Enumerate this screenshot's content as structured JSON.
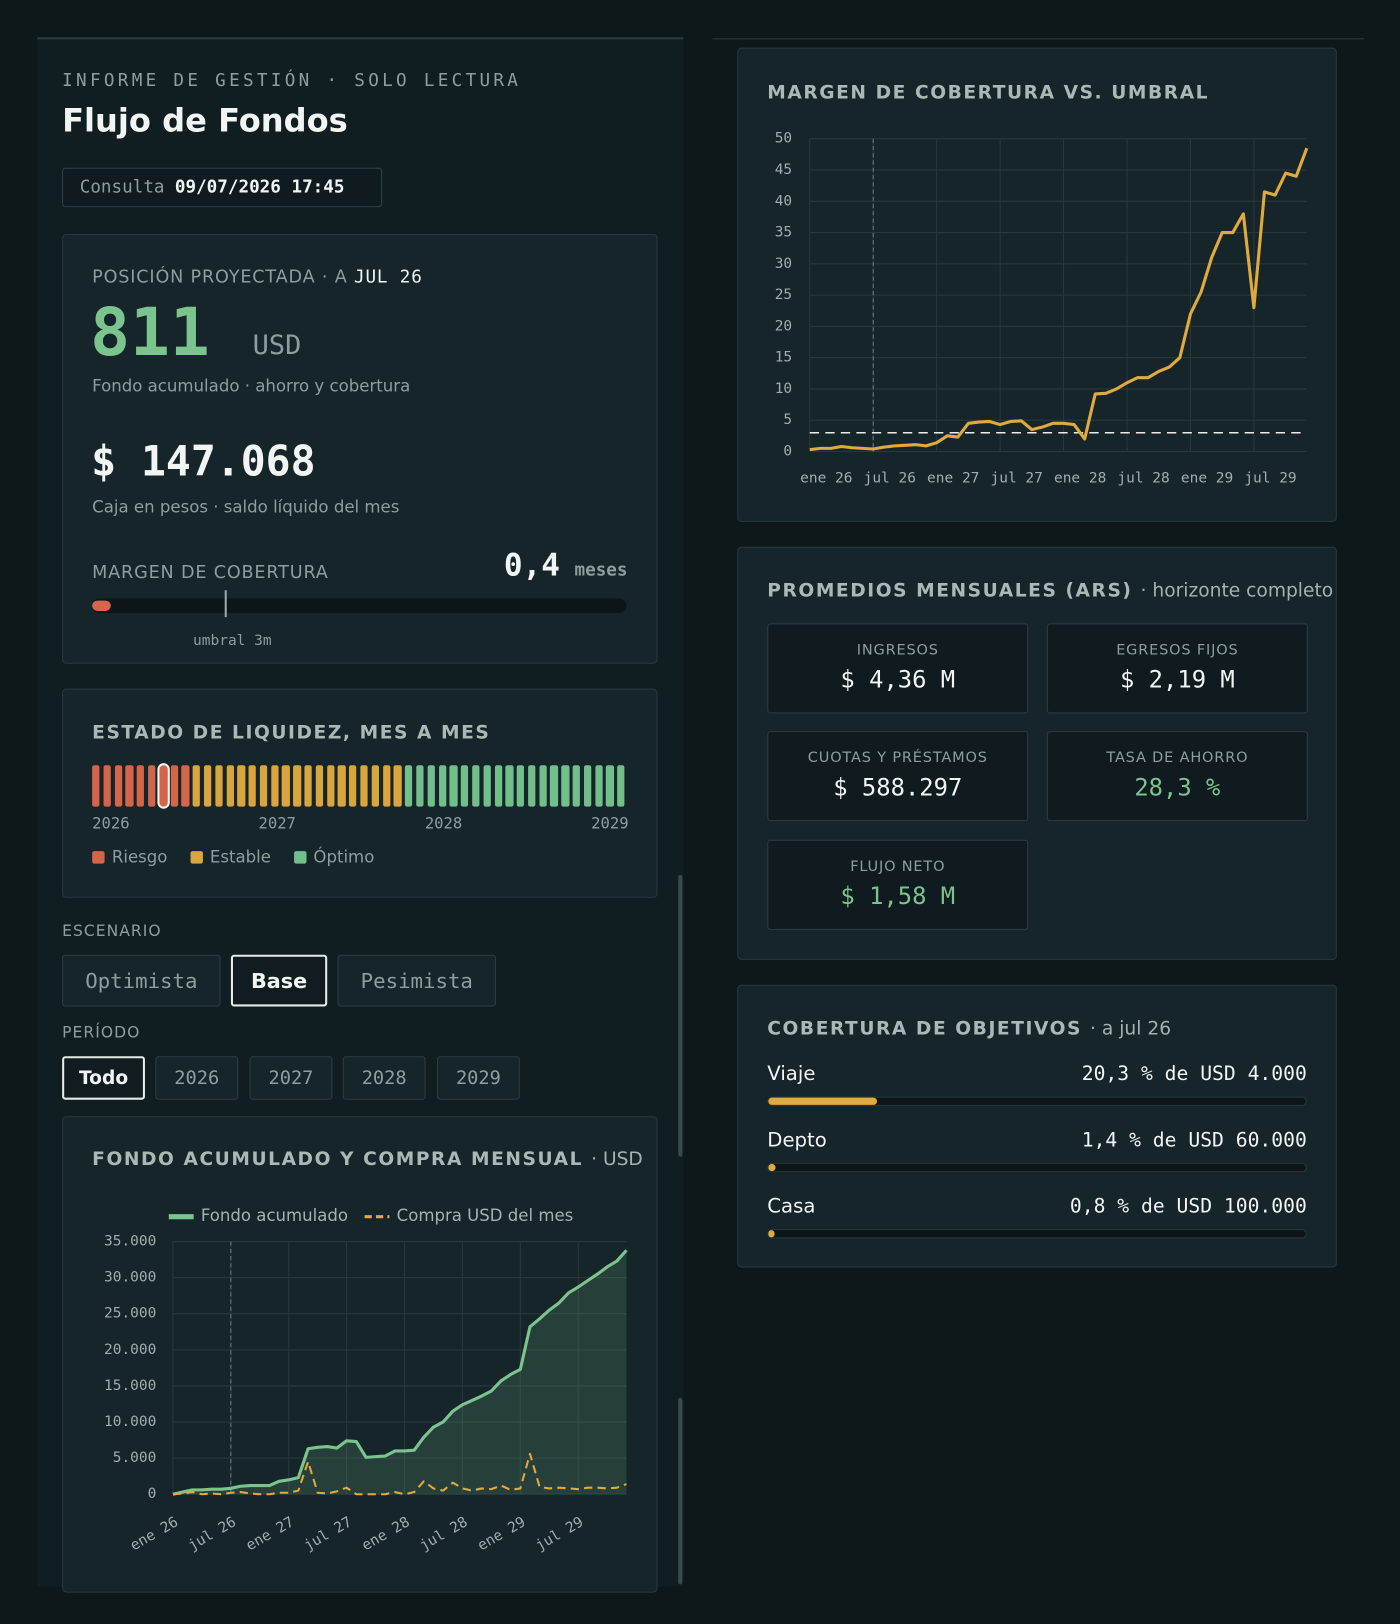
{
  "header": {
    "eyebrow": "INFORME DE GESTIÓN · SOLO LECTURA",
    "title": "Flujo de Fondos",
    "query_label": "Consulta",
    "query_value": "09/07/2026 17:45"
  },
  "position": {
    "label": "POSICIÓN PROYECTADA · A",
    "month": "JUL 26",
    "fund": 811,
    "fund_unit": "USD",
    "fund_caption": "Fondo acumulado · ahorro y cobertura",
    "cash": "$ 147.068",
    "cash_caption": "Caja en pesos · saldo líquido del mes",
    "margin": {
      "label": "MARGEN DE COBERTURA",
      "value": 0.4,
      "value_label": "0,4",
      "unit": "meses",
      "threshold": 3,
      "threshold_label": "umbral 3m",
      "scale_max": 12,
      "color": "#d8664b"
    }
  },
  "liquidity": {
    "title": "ESTADO DE LIQUIDEZ, MES A MES",
    "states": [
      0,
      0,
      0,
      0,
      0,
      0,
      0,
      0,
      0,
      1,
      1,
      1,
      1,
      1,
      1,
      1,
      1,
      1,
      1,
      1,
      1,
      1,
      1,
      1,
      1,
      1,
      1,
      1,
      2,
      2,
      2,
      2,
      2,
      2,
      2,
      2,
      2,
      2,
      2,
      2,
      2,
      2,
      2,
      2,
      2,
      2,
      2,
      2
    ],
    "selected": 6,
    "years": [
      2026,
      2027,
      2028,
      2029
    ],
    "legend": [
      {
        "label": "Riesgo",
        "color": "#d4654b"
      },
      {
        "label": "Estable",
        "color": "#d8a53f"
      },
      {
        "label": "Óptimo",
        "color": "#72bf8b"
      }
    ]
  },
  "scenario": {
    "label": "ESCENARIO",
    "options": [
      "Optimista",
      "Base",
      "Pesimista"
    ],
    "selected": 1
  },
  "period": {
    "label": "PERÍODO",
    "options": [
      "Todo",
      "2026",
      "2027",
      "2028",
      "2029"
    ],
    "selected": 0
  },
  "averages": {
    "title": "PROMEDIOS MENSUALES (ARS)",
    "subtitle": "· horizonte completo",
    "tiles": [
      {
        "label": "INGRESOS",
        "value": "$ 4,36 M"
      },
      {
        "label": "EGRESOS FIJOS",
        "value": "$ 2,19 M"
      },
      {
        "label": "CUOTAS Y PRÉSTAMOS",
        "value": "$ 588.297"
      },
      {
        "label": "TASA DE AHORRO",
        "value": "28,3 %",
        "color": "#7cc48e"
      },
      {
        "label": "FLUJO NETO",
        "value": "$ 1,58 M",
        "color": "#7cc48e"
      }
    ]
  },
  "goals": {
    "title": "COBERTURA DE OBJETIVOS",
    "subtitle": "· a jul 26",
    "color": "#e0aa3e",
    "items": [
      {
        "name": "Viaje",
        "value": 20.3,
        "label": "20,3 % de USD 4.000"
      },
      {
        "name": "Depto",
        "value": 1.4,
        "label": "1,4 % de USD 60.000"
      },
      {
        "name": "Casa",
        "value": 0.8,
        "label": "0,8 % de USD 100.000"
      }
    ]
  },
  "chart_data": [
    {
      "type": "line",
      "title": "FONDO ACUMULADO Y COMPRA MENSUAL",
      "subtitle": "· USD",
      "categories": [
        "ene 26",
        null,
        null,
        null,
        null,
        null,
        "jul 26",
        null,
        null,
        null,
        null,
        null,
        "ene 27",
        null,
        null,
        null,
        null,
        null,
        "jul 27",
        null,
        null,
        null,
        null,
        null,
        "ene 28",
        null,
        null,
        null,
        null,
        null,
        "jul 28",
        null,
        null,
        null,
        null,
        null,
        "ene 29",
        null,
        null,
        null,
        null,
        null,
        "jul 29",
        null,
        null,
        null,
        null,
        null
      ],
      "marker": 6,
      "ylim": [
        0,
        35000
      ],
      "yticks": [
        0,
        {
          "value": 5000,
          "label": "5.000"
        },
        {
          "value": 10000,
          "label": "10.000"
        },
        {
          "value": 15000,
          "label": "15.000"
        },
        {
          "value": 20000,
          "label": "20.000"
        },
        {
          "value": 25000,
          "label": "25.000"
        },
        {
          "value": 30000,
          "label": "30.000"
        },
        {
          "value": 35000,
          "label": "35.000"
        }
      ],
      "grid": true,
      "series": [
        {
          "name": "Fondo acumulado",
          "color": "#7cc48e",
          "fill": true,
          "values": [
            0,
            300,
            600,
            600,
            700,
            700,
            811,
            1100,
            1200,
            1200,
            1200,
            1800,
            2000,
            2300,
            6300,
            6500,
            6600,
            6400,
            7400,
            7300,
            5100,
            5200,
            5300,
            6000,
            6000,
            6100,
            7900,
            9300,
            10000,
            11500,
            12400,
            13000,
            13600,
            14300,
            15700,
            16600,
            17300,
            23200,
            24300,
            25500,
            26500,
            27900,
            28700,
            29600,
            30500,
            31500,
            32300,
            33800
          ]
        },
        {
          "name": "Compra USD del mes",
          "color": "#e0aa3e",
          "dashed": true,
          "values": [
            0,
            100,
            300,
            0,
            100,
            0,
            200,
            300,
            100,
            0,
            0,
            200,
            200,
            500,
            4500,
            200,
            100,
            400,
            900,
            0,
            0,
            0,
            0,
            300,
            0,
            300,
            1800,
            800,
            500,
            1600,
            800,
            500,
            800,
            700,
            1200,
            600,
            800,
            5600,
            1000,
            800,
            900,
            800,
            700,
            900,
            900,
            800,
            900,
            1400
          ]
        }
      ]
    },
    {
      "type": "line",
      "title": "MARGEN DE COBERTURA VS. UMBRAL",
      "categories": [
        "ene 26",
        null,
        null,
        null,
        null,
        null,
        "jul 26",
        null,
        null,
        null,
        null,
        null,
        "ene 27",
        null,
        null,
        null,
        null,
        null,
        "jul 27",
        null,
        null,
        null,
        null,
        null,
        "ene 28",
        null,
        null,
        null,
        null,
        null,
        "jul 28",
        null,
        null,
        null,
        null,
        null,
        "ene 29",
        null,
        null,
        null,
        null,
        null,
        "jul 29",
        null,
        null,
        null,
        null,
        null
      ],
      "marker": 6,
      "threshold": 3,
      "ylim": [
        0,
        50
      ],
      "yticks": [
        0,
        5,
        10,
        15,
        20,
        25,
        30,
        35,
        40,
        45,
        50
      ],
      "grid": true,
      "series": [
        {
          "color": "#e0aa3e",
          "values": [
            0.3,
            0.5,
            0.5,
            0.8,
            0.6,
            0.5,
            0.4,
            0.7,
            0.9,
            1.0,
            1.1,
            0.9,
            1.4,
            2.5,
            2.3,
            4.5,
            4.7,
            4.8,
            4.3,
            4.8,
            4.9,
            3.5,
            3.9,
            4.5,
            4.5,
            4.3,
            2.0,
            9.2,
            9.3,
            10.0,
            11.0,
            11.8,
            11.8,
            12.8,
            13.5,
            15,
            22,
            25.5,
            31,
            35,
            35,
            38,
            23,
            41.5,
            41,
            44.5,
            44,
            48.5
          ]
        }
      ]
    }
  ]
}
